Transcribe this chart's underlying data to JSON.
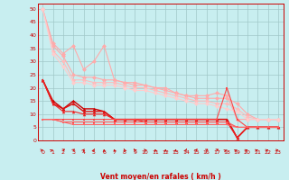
{
  "title": "",
  "xlabel": "Vent moyen/en rafales ( km/h )",
  "ylabel": "",
  "background_color": "#c8eef0",
  "grid_color": "#a0c8c8",
  "x_ticks": [
    0,
    1,
    2,
    3,
    4,
    5,
    6,
    7,
    8,
    9,
    10,
    11,
    12,
    13,
    14,
    15,
    16,
    17,
    18,
    19,
    20,
    21,
    22,
    23
  ],
  "y_ticks": [
    0,
    5,
    10,
    15,
    20,
    25,
    30,
    35,
    40,
    45,
    50
  ],
  "xlim": [
    -0.5,
    23.5
  ],
  "ylim": [
    0,
    52
  ],
  "lines": [
    {
      "x": [
        0,
        1,
        2,
        3,
        4,
        5,
        6,
        7,
        8,
        9,
        10,
        11,
        12,
        13,
        14,
        15,
        16,
        17,
        18,
        19,
        20,
        21,
        22,
        23
      ],
      "y": [
        50,
        37,
        33,
        36,
        27,
        30,
        36,
        23,
        22,
        22,
        21,
        20,
        20,
        18,
        17,
        17,
        17,
        18,
        17,
        8,
        8,
        8,
        8,
        8
      ],
      "color": "#ffaaaa",
      "marker": "D",
      "lw": 0.8,
      "ms": 2.5,
      "zorder": 3
    },
    {
      "x": [
        0,
        1,
        2,
        3,
        4,
        5,
        6,
        7,
        8,
        9,
        10,
        11,
        12,
        13,
        14,
        15,
        16,
        17,
        18,
        19,
        20,
        21,
        22,
        23
      ],
      "y": [
        50,
        36,
        32,
        25,
        24,
        24,
        23,
        23,
        22,
        21,
        21,
        20,
        19,
        18,
        17,
        16,
        16,
        16,
        16,
        14,
        10,
        8,
        8,
        8
      ],
      "color": "#ffaaaa",
      "marker": "D",
      "lw": 0.8,
      "ms": 2.5,
      "zorder": 3
    },
    {
      "x": [
        0,
        1,
        2,
        3,
        4,
        5,
        6,
        7,
        8,
        9,
        10,
        11,
        12,
        13,
        14,
        15,
        16,
        17,
        18,
        19,
        20,
        21,
        22,
        23
      ],
      "y": [
        50,
        34,
        30,
        23,
        23,
        22,
        22,
        22,
        21,
        20,
        20,
        19,
        18,
        17,
        16,
        15,
        15,
        14,
        14,
        12,
        9,
        8,
        8,
        8
      ],
      "color": "#ffbbbb",
      "marker": "D",
      "lw": 0.8,
      "ms": 2.5,
      "zorder": 3
    },
    {
      "x": [
        0,
        1,
        2,
        3,
        4,
        5,
        6,
        7,
        8,
        9,
        10,
        11,
        12,
        13,
        14,
        15,
        16,
        17,
        18,
        19,
        20,
        21,
        22,
        23
      ],
      "y": [
        50,
        33,
        28,
        22,
        22,
        21,
        21,
        21,
        20,
        19,
        19,
        18,
        17,
        16,
        15,
        14,
        14,
        13,
        12,
        11,
        8,
        8,
        8,
        8
      ],
      "color": "#ffcccc",
      "marker": "D",
      "lw": 0.8,
      "ms": 2.5,
      "zorder": 3
    },
    {
      "x": [
        0,
        1,
        2,
        3,
        4,
        5,
        6,
        7,
        8,
        9,
        10,
        11,
        12,
        13,
        14,
        15,
        16,
        17,
        18,
        19,
        20,
        21,
        22,
        23
      ],
      "y": [
        23,
        15,
        12,
        15,
        12,
        12,
        11,
        8,
        8,
        8,
        8,
        8,
        8,
        8,
        8,
        8,
        8,
        8,
        8,
        1,
        5,
        5,
        5,
        5
      ],
      "color": "#cc0000",
      "marker": "^",
      "lw": 1.0,
      "ms": 2.5,
      "zorder": 4
    },
    {
      "x": [
        0,
        1,
        2,
        3,
        4,
        5,
        6,
        7,
        8,
        9,
        10,
        11,
        12,
        13,
        14,
        15,
        16,
        17,
        18,
        19,
        20,
        21,
        22,
        23
      ],
      "y": [
        23,
        14,
        12,
        14,
        11,
        11,
        11,
        8,
        8,
        8,
        8,
        8,
        8,
        8,
        8,
        8,
        8,
        8,
        8,
        1,
        5,
        5,
        5,
        5
      ],
      "color": "#dd1111",
      "marker": "^",
      "lw": 1.0,
      "ms": 2.5,
      "zorder": 4
    },
    {
      "x": [
        0,
        1,
        2,
        3,
        4,
        5,
        6,
        7,
        8,
        9,
        10,
        11,
        12,
        13,
        14,
        15,
        16,
        17,
        18,
        19,
        20,
        21,
        22,
        23
      ],
      "y": [
        23,
        14,
        11,
        11,
        10,
        10,
        10,
        8,
        8,
        8,
        7,
        7,
        7,
        7,
        7,
        7,
        7,
        7,
        7,
        1,
        5,
        5,
        5,
        5
      ],
      "color": "#ee2222",
      "marker": "^",
      "lw": 0.8,
      "ms": 2.5,
      "zorder": 4
    },
    {
      "x": [
        0,
        1,
        2,
        3,
        4,
        5,
        6,
        7,
        8,
        9,
        10,
        11,
        12,
        13,
        14,
        15,
        16,
        17,
        18,
        19,
        20,
        21,
        22,
        23
      ],
      "y": [
        8,
        8,
        8,
        8,
        8,
        8,
        8,
        8,
        8,
        8,
        8,
        8,
        8,
        8,
        8,
        8,
        8,
        8,
        20,
        8,
        5,
        5,
        5,
        5
      ],
      "color": "#ff4444",
      "marker": "s",
      "lw": 0.8,
      "ms": 2.0,
      "zorder": 4
    },
    {
      "x": [
        0,
        1,
        2,
        3,
        4,
        5,
        6,
        7,
        8,
        9,
        10,
        11,
        12,
        13,
        14,
        15,
        16,
        17,
        18,
        19,
        20,
        21,
        22,
        23
      ],
      "y": [
        8,
        8,
        7,
        7,
        7,
        7,
        7,
        7,
        7,
        7,
        7,
        7,
        7,
        7,
        7,
        7,
        7,
        7,
        7,
        5,
        5,
        5,
        5,
        5
      ],
      "color": "#ff5555",
      "marker": "s",
      "lw": 0.8,
      "ms": 2.0,
      "zorder": 4
    },
    {
      "x": [
        0,
        1,
        2,
        3,
        4,
        5,
        6,
        7,
        8,
        9,
        10,
        11,
        12,
        13,
        14,
        15,
        16,
        17,
        18,
        19,
        20,
        21,
        22,
        23
      ],
      "y": [
        8,
        8,
        7,
        6,
        6,
        6,
        6,
        6,
        6,
        6,
        6,
        6,
        6,
        6,
        6,
        6,
        6,
        6,
        6,
        5,
        5,
        5,
        5,
        5
      ],
      "color": "#ff6666",
      "marker": "s",
      "lw": 0.8,
      "ms": 2.0,
      "zorder": 4
    }
  ],
  "wind_arrow_color": "#cc0000",
  "wind_angles": [
    30,
    45,
    55,
    65,
    75,
    80,
    90,
    95,
    100,
    110,
    105,
    95,
    90,
    85,
    80,
    70,
    60,
    55,
    50,
    45,
    40,
    38,
    35,
    32
  ]
}
